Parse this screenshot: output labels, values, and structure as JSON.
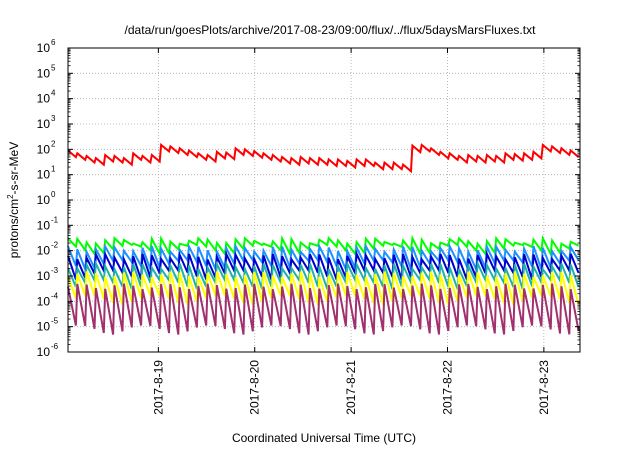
{
  "chart_data": {
    "type": "line",
    "title": "/data/run/goesPlots/archive/2017-08-23/09:00/flux/../flux/5daysMarsFluxes.txt",
    "xlabel": "Coordinated Universal Time (UTC)",
    "ylabel": {
      "prefix": "protons/cm",
      "superscript": "2",
      "suffix": "-s-sr-MeV"
    },
    "y_scale": "log",
    "ylim": [
      1e-06,
      1000000.0
    ],
    "y_ticks": [
      {
        "base": "10",
        "exp": "-6",
        "value": 1e-06
      },
      {
        "base": "10",
        "exp": "-5",
        "value": 1e-05
      },
      {
        "base": "10",
        "exp": "-4",
        "value": 0.0001
      },
      {
        "base": "10",
        "exp": "-3",
        "value": 0.001
      },
      {
        "base": "10",
        "exp": "-2",
        "value": 0.01
      },
      {
        "base": "10",
        "exp": "-1",
        "value": 0.1
      },
      {
        "base": "10",
        "exp": "0",
        "value": 1
      },
      {
        "base": "10",
        "exp": "1",
        "value": 10
      },
      {
        "base": "10",
        "exp": "2",
        "value": 100
      },
      {
        "base": "10",
        "exp": "3",
        "value": 1000
      },
      {
        "base": "10",
        "exp": "4",
        "value": 10000
      },
      {
        "base": "10",
        "exp": "5",
        "value": 100000
      },
      {
        "base": "10",
        "exp": "6",
        "value": 1000000
      }
    ],
    "x_domain": [
      "2017-08-18 01:30",
      "2017-08-23 09:00"
    ],
    "x_ticks": [
      {
        "label": "2017-8-19",
        "date": "2017-08-19 00:00"
      },
      {
        "label": "2017-8-20",
        "date": "2017-08-20 00:00"
      },
      {
        "label": "2017-8-21",
        "date": "2017-08-21 00:00"
      },
      {
        "label": "2017-8-22",
        "date": "2017-08-22 00:00"
      },
      {
        "label": "2017-8-23",
        "date": "2017-08-23 00:00"
      }
    ],
    "grid": true,
    "sawtooth_teeth": 55,
    "series": [
      {
        "color": "#ff0000",
        "kind": "red",
        "values": [
          90,
          70,
          55,
          45,
          60,
          55,
          45,
          70,
          55,
          60,
          150,
          130,
          110,
          90,
          70,
          60,
          80,
          75,
          110,
          100,
          85,
          70,
          60,
          50,
          45,
          50,
          45,
          45,
          40,
          40,
          35,
          40,
          40,
          30,
          30,
          30,
          25,
          140,
          150,
          110,
          80,
          70,
          55,
          60,
          55,
          60,
          55,
          70,
          65,
          70,
          80,
          150,
          130,
          110,
          90
        ]
      },
      {
        "color": "#00ff00",
        "kind": "peaks",
        "peak": 0.025,
        "trough": 0.012
      },
      {
        "color": "#1e90ff",
        "kind": "peaks",
        "peak": 0.012,
        "trough": 0.003
      },
      {
        "color": "#0000cd",
        "kind": "peaks",
        "peak": 0.006,
        "trough": 0.0012
      },
      {
        "color": "#20b2aa",
        "kind": "peaks",
        "peak": 0.0025,
        "trough": 0.0005
      },
      {
        "color": "#ffff00",
        "kind": "peaks",
        "peak": 0.0012,
        "trough": 0.00012
      },
      {
        "color": "#a0306e",
        "kind": "peaks",
        "peak": 0.0004,
        "trough": 8e-06
      }
    ]
  }
}
